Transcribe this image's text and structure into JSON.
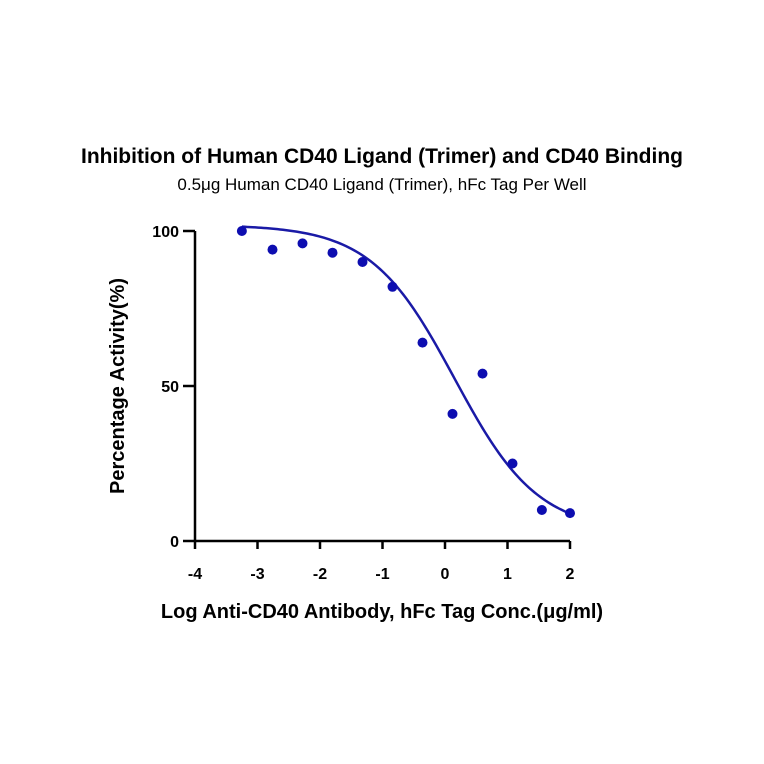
{
  "chart_data": {
    "type": "scatter",
    "title": "Inhibition of Human CD40 Ligand (Trimer) and CD40 Binding",
    "subtitle": "0.5μg Human CD40 Ligand (Trimer), hFc Tag Per Well",
    "xlabel": "Log Anti-CD40 Antibody, hFc Tag Conc.(μg/ml)",
    "ylabel": "Percentage Activity(%)",
    "xlim": [
      -4,
      2
    ],
    "ylim": [
      0,
      100
    ],
    "x_ticks": [
      "-4",
      "-3",
      "-2",
      "-1",
      "0",
      "1",
      "2"
    ],
    "y_ticks": [
      "0",
      "50",
      "100"
    ],
    "grid": false,
    "colors": {
      "points": "#0d0db0",
      "curve": "#1a1aa6"
    },
    "series": [
      {
        "points": [
          {
            "x": -3.25,
            "y": 100
          },
          {
            "x": -2.76,
            "y": 94
          },
          {
            "x": -2.28,
            "y": 96
          },
          {
            "x": -1.8,
            "y": 93
          },
          {
            "x": -1.32,
            "y": 90
          },
          {
            "x": -0.84,
            "y": 82
          },
          {
            "x": -0.36,
            "y": 64
          },
          {
            "x": 0.12,
            "y": 41
          },
          {
            "x": 0.6,
            "y": 54
          },
          {
            "x": 1.08,
            "y": 25
          },
          {
            "x": 1.55,
            "y": 10
          },
          {
            "x": 2.0,
            "y": 9
          }
        ],
        "fit": {
          "model": "4PL",
          "top": 102,
          "bottom": 3,
          "log_ic50": 0.15,
          "hill_slope": -0.65
        }
      }
    ]
  }
}
